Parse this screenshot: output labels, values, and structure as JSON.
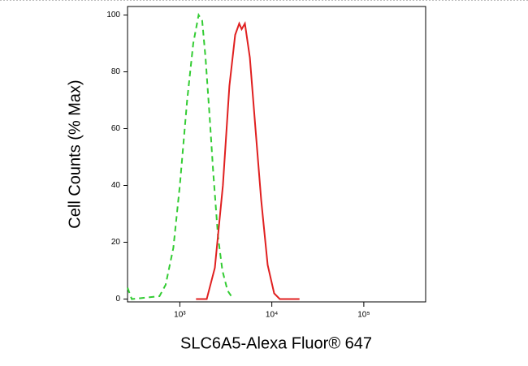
{
  "chart_data": {
    "type": "line",
    "x_label": "SLC6A5-Alexa Fluor® 647",
    "y_label": "Cell Counts (% Max)",
    "x_scale": "log",
    "xlim": [
      270,
      470000
    ],
    "xticks": [
      {
        "value": 1000,
        "label": "10³"
      },
      {
        "value": 10000,
        "label": "10⁴"
      },
      {
        "value": 100000,
        "label": "10⁵"
      }
    ],
    "ylim": [
      -1,
      103
    ],
    "yticks": [
      0,
      20,
      40,
      60,
      80,
      100
    ],
    "series": [
      {
        "color": "#33cc33",
        "dash": true,
        "x": [
          270,
          300,
          600,
          700,
          850,
          1000,
          1200,
          1400,
          1600,
          1750,
          1900,
          2100,
          2300,
          2600,
          2900,
          3300,
          3800
        ],
        "values": [
          4,
          0,
          1,
          5,
          18,
          40,
          70,
          90,
          100,
          98,
          85,
          65,
          45,
          22,
          10,
          3,
          0
        ]
      },
      {
        "color": "#e02020",
        "dash": false,
        "x": [
          1500,
          1960,
          2400,
          2940,
          3460,
          3990,
          4420,
          4700,
          5100,
          5770,
          6640,
          7660,
          9010,
          10600,
          12200,
          20000
        ],
        "values": [
          0,
          0,
          11,
          40,
          75,
          93,
          97,
          95,
          97,
          85,
          60,
          35,
          12,
          2,
          0,
          0
        ]
      }
    ]
  }
}
